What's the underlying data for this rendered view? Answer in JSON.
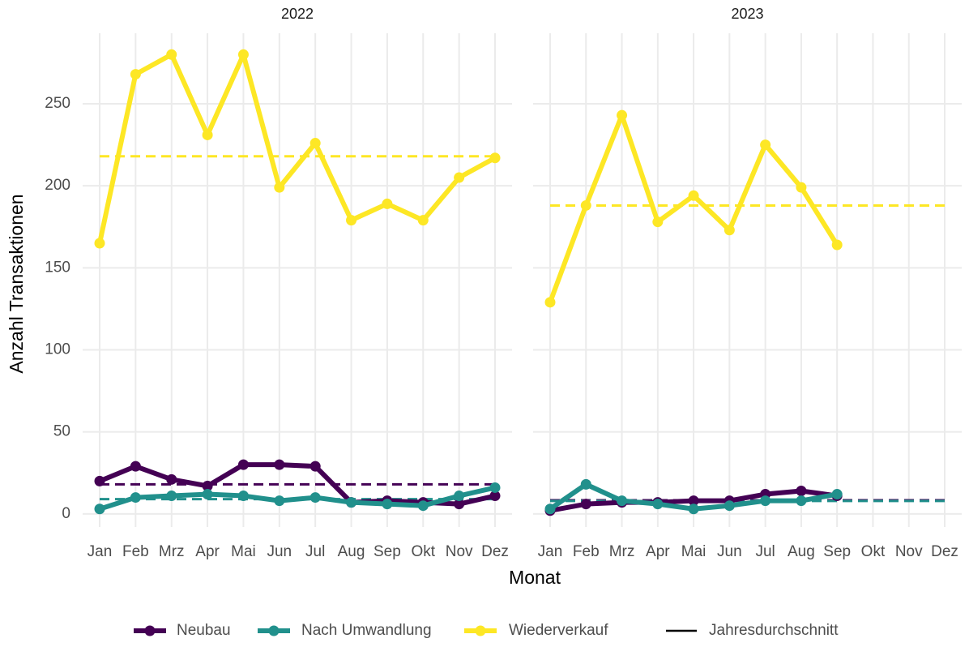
{
  "chart_data": {
    "type": "line",
    "facets": [
      "2022",
      "2023"
    ],
    "x_label": "Monat",
    "y_label": "Anzahl Transaktionen",
    "mean_label": "Jahresdurchschnitt",
    "legend": "bottom",
    "grid": true,
    "categories": [
      "Jan",
      "Feb",
      "Mrz",
      "Apr",
      "Mai",
      "Jun",
      "Jul",
      "Aug",
      "Sep",
      "Okt",
      "Nov",
      "Dez"
    ],
    "ylim": [
      -8,
      293
    ],
    "yticks": [
      0,
      50,
      100,
      150,
      200,
      250
    ],
    "series": [
      {
        "name": "Neubau",
        "color": "#440154",
        "values": [
          [
            20,
            29,
            21,
            17,
            30,
            30,
            29,
            7,
            8,
            7,
            6,
            11
          ],
          [
            2,
            6,
            7,
            7,
            8,
            8,
            12,
            14,
            11,
            null,
            null,
            null
          ]
        ],
        "means": [
          18,
          8.3
        ]
      },
      {
        "name": "Nach Umwandlung",
        "color": "#21908C",
        "values": [
          [
            3,
            10,
            11,
            12,
            11,
            8,
            10,
            7,
            6,
            5,
            11,
            16
          ],
          [
            3,
            18,
            8,
            6,
            3,
            5,
            8,
            8,
            12,
            null,
            null,
            null
          ]
        ],
        "means": [
          9,
          7.9
        ]
      },
      {
        "name": "Wiederverkauf",
        "color": "#FDE725",
        "values": [
          [
            165,
            268,
            280,
            231,
            280,
            199,
            226,
            179,
            189,
            179,
            205,
            217
          ],
          [
            129,
            188,
            243,
            178,
            194,
            173,
            225,
            199,
            164,
            null,
            null,
            null
          ]
        ],
        "means": [
          218,
          188
        ]
      }
    ]
  }
}
